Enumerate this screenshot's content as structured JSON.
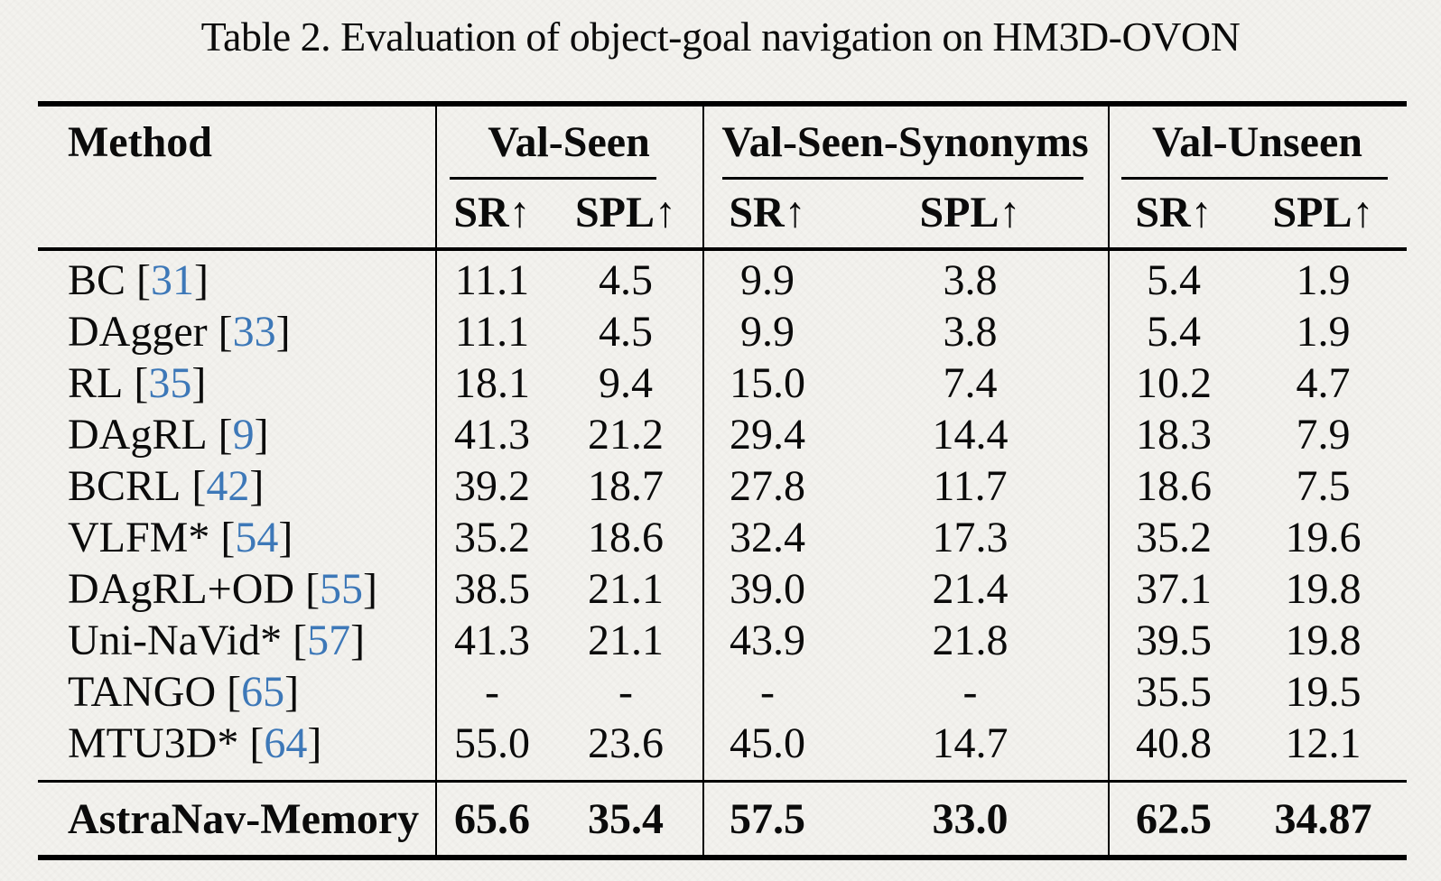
{
  "page": {
    "title": "Table 2. Evaluation of object-goal navigation on HM3D-OVON"
  },
  "table": {
    "method_header": "Method",
    "bracket_open": "[",
    "bracket_close": "]",
    "groups": [
      {
        "label": "Val-Seen"
      },
      {
        "label": "Val-Seen-Synonyms"
      },
      {
        "label": "Val-Unseen"
      }
    ],
    "subheaders": [
      "SR↑",
      "SPL↑",
      "SR↑",
      "SPL↑",
      "SR↑",
      "SPL↑"
    ],
    "rows": [
      {
        "method": "BC",
        "cite": "31",
        "values": [
          "11.1",
          "4.5",
          "9.9",
          "3.8",
          "5.4",
          "1.9"
        ]
      },
      {
        "method": "DAgger",
        "cite": "33",
        "values": [
          "11.1",
          "4.5",
          "9.9",
          "3.8",
          "5.4",
          "1.9"
        ]
      },
      {
        "method": "RL",
        "cite": "35",
        "values": [
          "18.1",
          "9.4",
          "15.0",
          "7.4",
          "10.2",
          "4.7"
        ]
      },
      {
        "method": "DAgRL",
        "cite": "9",
        "values": [
          "41.3",
          "21.2",
          "29.4",
          "14.4",
          "18.3",
          "7.9"
        ]
      },
      {
        "method": "BCRL",
        "cite": "42",
        "values": [
          "39.2",
          "18.7",
          "27.8",
          "11.7",
          "18.6",
          "7.5"
        ]
      },
      {
        "method": "VLFM*",
        "cite": "54",
        "values": [
          "35.2",
          "18.6",
          "32.4",
          "17.3",
          "35.2",
          "19.6"
        ]
      },
      {
        "method": "DAgRL+OD",
        "cite": "55",
        "values": [
          "38.5",
          "21.1",
          "39.0",
          "21.4",
          "37.1",
          "19.8"
        ]
      },
      {
        "method": "Uni-NaVid*",
        "cite": "57",
        "values": [
          "41.3",
          "21.1",
          "43.9",
          "21.8",
          "39.5",
          "19.8"
        ]
      },
      {
        "method": "TANGO",
        "cite": "65",
        "values": [
          "-",
          "-",
          "-",
          "-",
          "35.5",
          "19.5"
        ]
      },
      {
        "method": "MTU3D*",
        "cite": "64",
        "values": [
          "55.0",
          "23.6",
          "45.0",
          "14.7",
          "40.8",
          "12.1"
        ]
      }
    ],
    "highlight_row": {
      "method": "AstraNav-Memory",
      "values": [
        "65.6",
        "35.4",
        "57.5",
        "33.0",
        "62.5",
        "34.87"
      ]
    }
  },
  "colors": {
    "citation_blue": "#3d78b8",
    "background": "#f3f2ee",
    "rule_black": "#000000"
  }
}
